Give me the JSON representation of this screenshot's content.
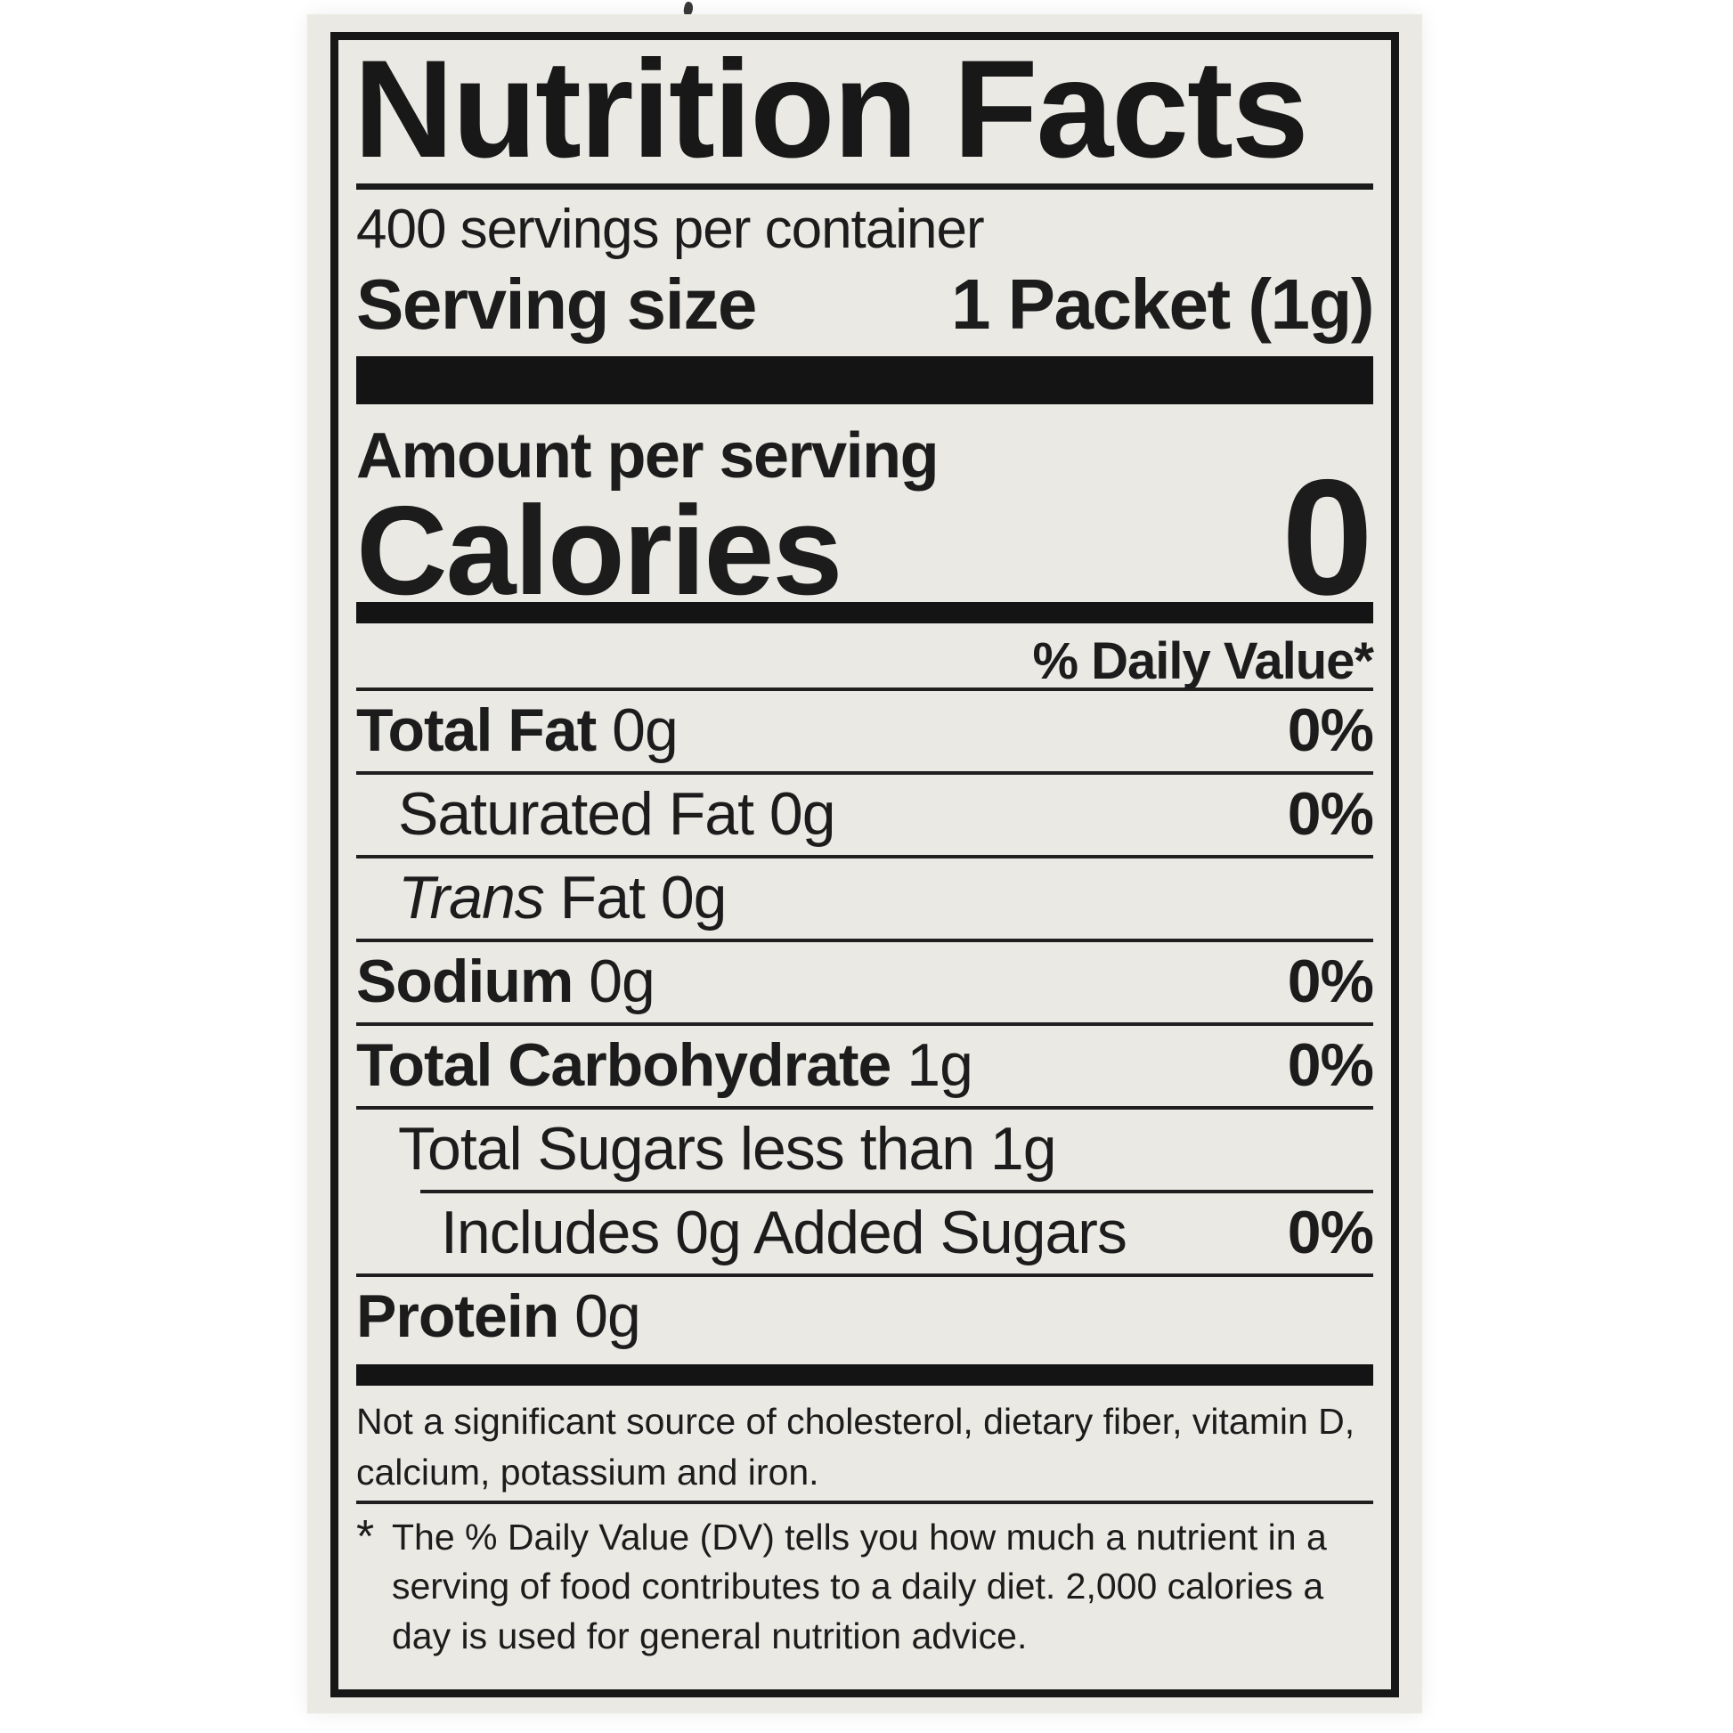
{
  "label": {
    "title": "Nutrition Facts",
    "servings_per_container": "400 servings per container",
    "serving_size_label": "Serving size",
    "serving_size_value": "1 Packet (1g)",
    "amount_per_serving": "Amount per serving",
    "calories_label": "Calories",
    "calories_value": "0",
    "daily_value_header": "% Daily Value*",
    "rows": [
      {
        "parts": [
          {
            "text": "Total Fat",
            "style": "bold"
          },
          {
            "text": " 0g",
            "style": "regular"
          }
        ],
        "pct": "0%",
        "indent": 0,
        "sep": "full"
      },
      {
        "parts": [
          {
            "text": "Saturated Fat 0g",
            "style": "regular"
          }
        ],
        "pct": "0%",
        "indent": 1,
        "sep": "full"
      },
      {
        "parts": [
          {
            "text": "Trans",
            "style": "italic"
          },
          {
            "text": " Fat 0g",
            "style": "regular"
          }
        ],
        "pct": "",
        "indent": 1,
        "sep": "full"
      },
      {
        "parts": [
          {
            "text": "Sodium",
            "style": "bold"
          },
          {
            "text": " 0g",
            "style": "regular"
          }
        ],
        "pct": "0%",
        "indent": 0,
        "sep": "full"
      },
      {
        "parts": [
          {
            "text": "Total Carbohydrate",
            "style": "bold"
          },
          {
            "text": " 1g",
            "style": "regular"
          }
        ],
        "pct": "0%",
        "indent": 0,
        "sep": "full"
      },
      {
        "parts": [
          {
            "text": "Total Sugars less than 1g",
            "style": "regular"
          }
        ],
        "pct": "",
        "indent": 1,
        "sep": "full"
      },
      {
        "parts": [
          {
            "text": "Includes 0g Added Sugars",
            "style": "regular"
          }
        ],
        "pct": "0%",
        "indent": 2,
        "sep": "inset"
      },
      {
        "parts": [
          {
            "text": "Protein",
            "style": "bold"
          },
          {
            "text": " 0g",
            "style": "regular"
          }
        ],
        "pct": "",
        "indent": 0,
        "sep": "full"
      }
    ],
    "footnote_significant": "Not a significant source of cholesterol, dietary fiber, vitamin D,\ncalcium, potassium and iron.",
    "footnote_dv_marker": "*",
    "footnote_dv": "The % Daily Value (DV) tells you how much a nutrient in a\nserving of food contributes to a daily diet. 2,000 calories a\nday is used for general nutrition advice."
  },
  "colors": {
    "text": "#1c1c1c",
    "bars_and_border": "#171717",
    "label_background": "#eae9e4",
    "page_background": "#ffffff"
  }
}
